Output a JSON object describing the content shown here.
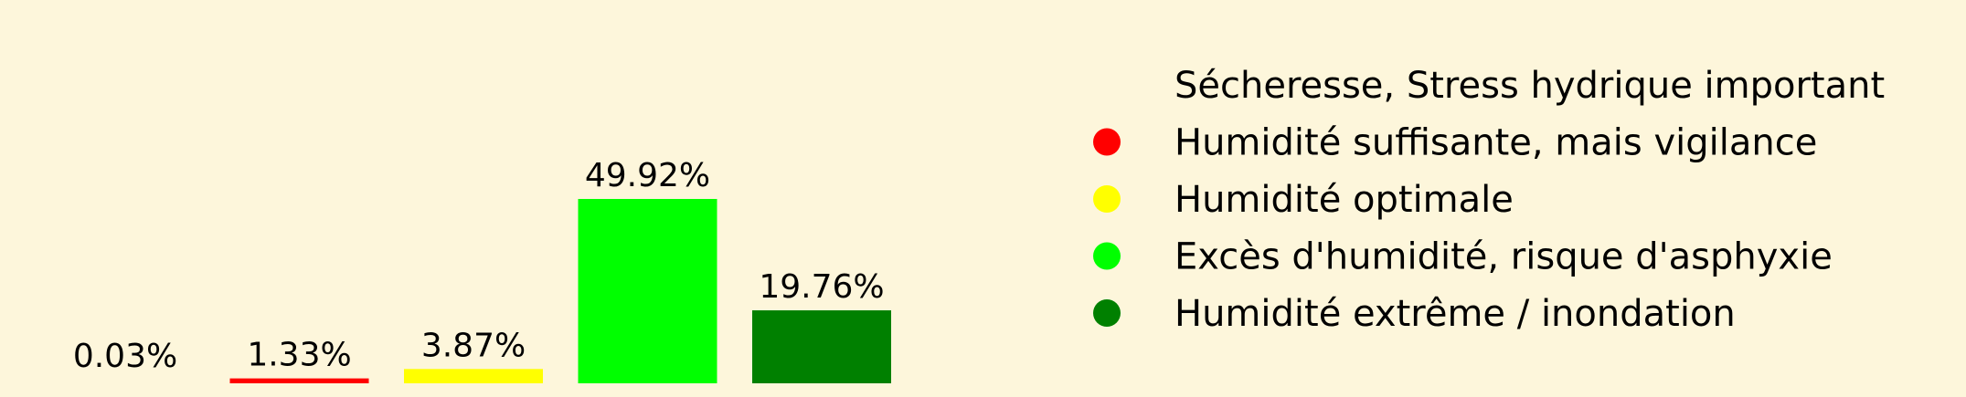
{
  "chart_data": {
    "type": "bar",
    "categories": [
      "Sécheresse, Stress hydrique important",
      "Humidité suffisante, mais vigilance",
      "Humidité optimale",
      "Excès d'humidité, risque d'asphyxie",
      "Humidité extrême / inondation"
    ],
    "values": [
      0.03,
      1.33,
      3.87,
      49.92,
      19.76
    ],
    "value_labels": [
      "0.03%",
      "1.33%",
      "3.87%",
      "49.92%",
      "19.76%"
    ],
    "colors": [
      "#fdf6db",
      "#ff0000",
      "#ffff00",
      "#00ff00",
      "#008000"
    ],
    "ylim": [
      0,
      60
    ],
    "legend": {
      "placement": "right",
      "entries": [
        "Sécheresse, Stress hydrique important",
        "Humidité suffisante, mais vigilance",
        "Humidité optimale",
        "Excès d'humidité, risque d'asphyxie",
        "Humidité extrême / inondation"
      ]
    },
    "grid": false,
    "axes_visible": false
  }
}
